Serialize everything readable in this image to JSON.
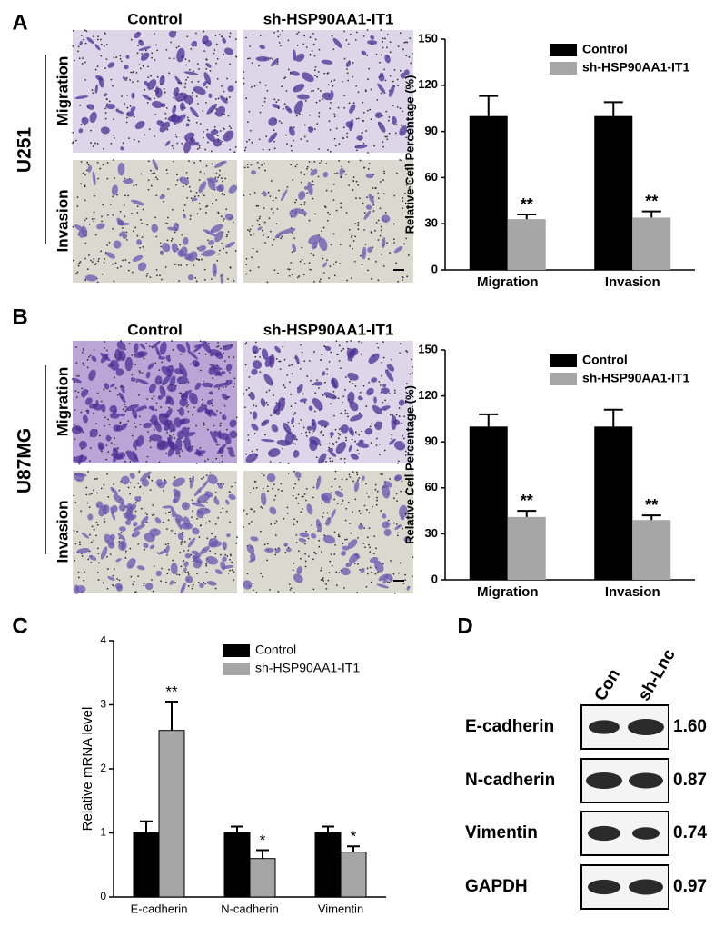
{
  "figure": {
    "panel_labels": [
      "A",
      "B",
      "C",
      "D"
    ],
    "micrographs": [
      {
        "cell_line": "U251",
        "columns": [
          "Control",
          "sh-HSP90AA1-IT1"
        ],
        "rows": [
          "Migration",
          "Invasion"
        ]
      },
      {
        "cell_line": "U87MG",
        "columns": [
          "Control",
          "sh-HSP90AA1-IT1"
        ],
        "rows": [
          "Migration",
          "Invasion"
        ]
      }
    ],
    "blot": {
      "columns": [
        "Con",
        "sh-Lnc"
      ],
      "rows": [
        {
          "protein": "E-cadherin",
          "ratio": "1.60"
        },
        {
          "protein": "N-cadherin",
          "ratio": "0.87"
        },
        {
          "protein": "Vimentin",
          "ratio": "0.74"
        },
        {
          "protein": "GAPDH",
          "ratio": "0.97"
        }
      ]
    }
  },
  "chart_data": [
    {
      "type": "bar",
      "y_label": "Relative Cell Percentage (%)",
      "categories": [
        "Migration",
        "Invasion"
      ],
      "series": [
        {
          "name": "Control",
          "color": "#000000",
          "values": [
            100,
            100
          ],
          "errors": [
            13,
            9
          ]
        },
        {
          "name": "sh-HSP90AA1-IT1",
          "color": "#a6a6a6",
          "values": [
            33,
            34
          ],
          "errors": [
            3,
            4
          ],
          "labels": [
            "**",
            "**"
          ]
        }
      ],
      "ylim": [
        0,
        150
      ],
      "yticks": [
        0,
        30,
        60,
        90,
        120,
        150
      ]
    },
    {
      "type": "bar",
      "y_label": "Relative Cell Percentage (%)",
      "categories": [
        "Migration",
        "Invasion"
      ],
      "series": [
        {
          "name": "Control",
          "color": "#000000",
          "values": [
            100,
            100
          ],
          "errors": [
            8,
            11
          ]
        },
        {
          "name": "sh-HSP90AA1-IT1",
          "color": "#a6a6a6",
          "values": [
            41,
            39
          ],
          "errors": [
            4,
            3
          ],
          "labels": [
            "**",
            "**"
          ]
        }
      ],
      "ylim": [
        0,
        150
      ],
      "yticks": [
        0,
        30,
        60,
        90,
        120,
        150
      ]
    },
    {
      "type": "bar",
      "y_label": "Relative mRNA level",
      "categories": [
        "E-cadherin",
        "N-cadherin",
        "Vimentin"
      ],
      "series": [
        {
          "name": "Control",
          "color": "#000000",
          "values": [
            1.0,
            1.0,
            1.0
          ],
          "errors": [
            0.18,
            0.1,
            0.1
          ]
        },
        {
          "name": "sh-HSP90AA1-IT1",
          "color": "#a6a6a6",
          "values": [
            2.6,
            0.6,
            0.7
          ],
          "errors": [
            0.45,
            0.13,
            0.09
          ],
          "labels": [
            "**",
            "*",
            "*"
          ]
        }
      ],
      "ylim": [
        0,
        4
      ],
      "yticks": [
        0,
        1,
        2,
        3,
        4
      ]
    }
  ]
}
